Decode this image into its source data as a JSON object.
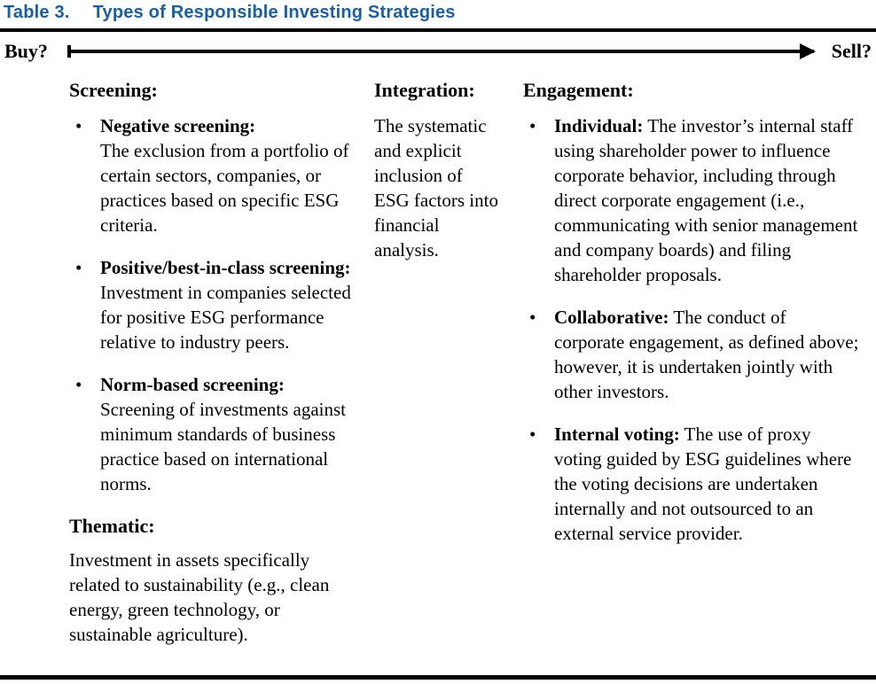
{
  "title": {
    "label": "Table 3.",
    "text": "Types of Responsible Investing Strategies"
  },
  "spectrum": {
    "left_label": "Buy?",
    "right_label": "Sell?"
  },
  "bullet_glyph": "•",
  "colors": {
    "title_blue": "#1760A8",
    "rule_black": "#000000",
    "text_black": "#000000"
  },
  "columns": {
    "screening": {
      "heading": "Screening:",
      "bullets": [
        {
          "lead": "Negative screening:",
          "text": "The exclusion from a portfolio of certain sectors, companies, or practices based on specific ESG criteria."
        },
        {
          "lead": "Positive/best-in-class screening:",
          "text": "Investment in companies selected for positive ESG performance relative to industry peers."
        },
        {
          "lead": "Norm-based screening:",
          "text": "Screening of investments against minimum standards of business practice based on international norms."
        }
      ],
      "subheading": "Thematic:",
      "subtext": "Investment in assets specifically related to sustainability (e.g., clean energy, green technology, or sustainable agriculture)."
    },
    "integration": {
      "heading": "Integration:",
      "text": "The systematic and explicit inclusion of ESG factors into financial analysis."
    },
    "engagement": {
      "heading": "Engagement:",
      "bullets": [
        {
          "lead": "Individual:",
          "text": "The investor’s internal staff using shareholder power to influence corporate behavior, including through direct corporate engagement (i.e., communicating with senior management and company boards) and filing shareholder proposals."
        },
        {
          "lead": "Collaborative:",
          "text": "The conduct of corporate engagement, as defined above; however, it is undertaken jointly with other investors."
        },
        {
          "lead": "Internal voting:",
          "text": "The use of proxy voting guided by ESG guidelines where the voting decisions are undertaken internally and not outsourced to an external service provider."
        }
      ]
    }
  }
}
